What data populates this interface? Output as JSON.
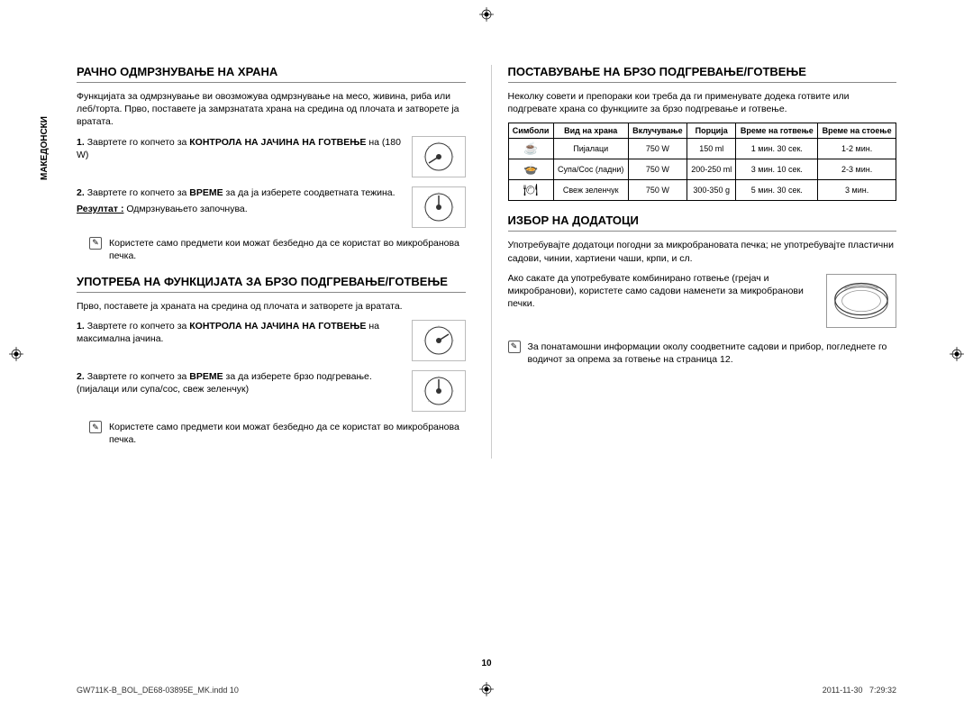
{
  "vertLabel": "МАКЕДОНСКИ",
  "left": {
    "sec1": {
      "title": "РАЧНО ОДМРЗНУВАЊЕ НА ХРАНА",
      "intro": "Функцијата за одмрзнување ви овозможува одмрзнување на месо, живина, риба или леб/торта. Прво, поставете ја замрзнатата храна на средина од плочата и затворете ја вратата.",
      "step1_pre": "1. ",
      "step1_a": "Завртете го копчето за ",
      "step1_b": "КОНТРОЛА НА ЈАЧИНА НА ГОТВЕЊЕ",
      "step1_c": " на (180 W)",
      "step2_pre": "2. ",
      "step2_a": "Завртете го копчето за ",
      "step2_b": "ВРЕМЕ",
      "step2_c": " за да ја изберете соодветната тежина.",
      "result_label": "Резултат :",
      "result_text": " Одмрзнувањето започнува.",
      "note": "Користете само предмети кои можат безбедно да се користат во микробранова печка."
    },
    "sec2": {
      "title": "УПОТРЕБА НА ФУНКЦИЈАТА ЗА БРЗО ПОДГРЕВАЊЕ/ГОТВЕЊЕ",
      "intro": "Прво, поставете ја храната на средина од плочата и затворете ја вратата.",
      "step1_pre": "1. ",
      "step1_a": "Завртете го копчето за ",
      "step1_b": "КОНТРОЛА НА ЈАЧИНА НА ГОТВЕЊЕ",
      "step1_c": " на максимална јачина.",
      "step2_pre": "2. ",
      "step2_a": "Завртете го копчето за ",
      "step2_b": "ВРЕМЕ",
      "step2_c": " за да изберете брзо подгревање. (пијалаци или супа/сос, свеж зеленчук)",
      "note": "Користете само предмети кои можат безбедно да се користат во микробранова печка."
    }
  },
  "right": {
    "sec1": {
      "title": "ПОСТАВУВАЊЕ НА БРЗО ПОДГРЕВАЊЕ/ГОТВЕЊЕ",
      "intro": "Неколку совети и препораки кои треба да ги применувате додека готвите или подгревате храна со функциите за брзо подгревање и готвење.",
      "headers": [
        "Симболи",
        "Вид на храна",
        "Вклучување",
        "Порција",
        "Време на готвење",
        "Време на стоење"
      ],
      "rows": [
        {
          "sym": "☕",
          "food": "Пијалаци",
          "pw": "750 W",
          "por": "150 ml",
          "ct": "1 мин. 30 сек.",
          "st": "1-2 мин."
        },
        {
          "sym": "🍲",
          "food": "Супа/Сос (ладни)",
          "pw": "750 W",
          "por": "200-250 ml",
          "ct": "3 мин. 10 сек.",
          "st": "2-3 мин."
        },
        {
          "sym": "🍽",
          "food": "Свеж зеленчук",
          "pw": "750 W",
          "por": "300-350 g",
          "ct": "5 мин. 30 сек.",
          "st": "3 мин."
        }
      ]
    },
    "sec2": {
      "title": "ИЗБОР НА ДОДАТОЦИ",
      "p1": "Употребувајте додатоци погодни за микробрановата печка; не употребувајте пластични садови, чинии, хартиени чаши, крпи, и сл.",
      "p2": "Ако сакате да употребувате комбинирано готвење (грејач и микробранови), користете само садови наменети за микробранови печки.",
      "note": "За понатамошни информации околу соодветните садови и прибор, погледнете го водичот за опрема за готвење на страница 12."
    }
  },
  "pageNum": "10",
  "footerLeft": "GW711K-B_BOL_DE68-03895E_MK.indd   10",
  "footerDate": "2011-11-30",
  "footerTime": "7:29:32"
}
